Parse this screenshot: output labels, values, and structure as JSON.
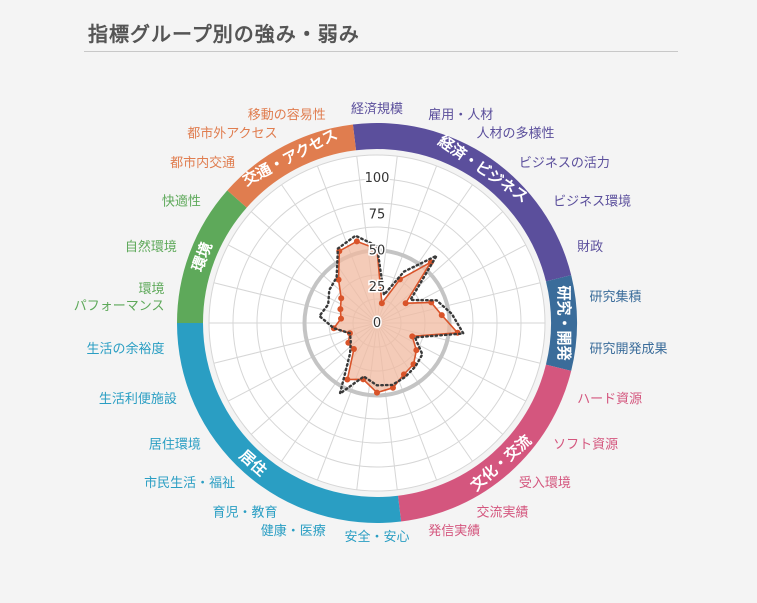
{
  "title": "指標グループ別の強み・弱み",
  "chart_data": {
    "type": "radar",
    "axis_ticks": [
      "0",
      "25",
      "50",
      "75",
      "100"
    ],
    "rlim": [
      0,
      100
    ],
    "average_value": 50,
    "groups": [
      {
        "name": "経済・ビジネス",
        "color": "#5b4f9c"
      },
      {
        "name": "研究・開発",
        "color": "#3a6c9a"
      },
      {
        "name": "文化・交流",
        "color": "#d4567e"
      },
      {
        "name": "居住",
        "color": "#2a9ec3"
      },
      {
        "name": "環境",
        "color": "#5ea95a"
      },
      {
        "name": "交通・アクセス",
        "color": "#e07d4f"
      }
    ],
    "categories": [
      {
        "label": "経済規模",
        "group": 0
      },
      {
        "label": "雇用・人材",
        "group": 0
      },
      {
        "label": "人材の多様性",
        "group": 0
      },
      {
        "label": "ビジネスの活力",
        "group": 0
      },
      {
        "label": "ビジネス環境",
        "group": 0
      },
      {
        "label": "財政",
        "group": 0
      },
      {
        "label": "研究集積",
        "group": 1
      },
      {
        "label": "研究開発成果",
        "group": 1
      },
      {
        "label": "ハード資源",
        "group": 2
      },
      {
        "label": "ソフト資源",
        "group": 2
      },
      {
        "label": "受入環境",
        "group": 2
      },
      {
        "label": "交流実績",
        "group": 2
      },
      {
        "label": "発信実績",
        "group": 2
      },
      {
        "label": "安全・安心",
        "group": 3
      },
      {
        "label": "健康・医療",
        "group": 3
      },
      {
        "label": "育児・教育",
        "group": 3
      },
      {
        "label": "市民生活・福祉",
        "group": 3
      },
      {
        "label": "居住環境",
        "group": 3
      },
      {
        "label": "生活利便施設",
        "group": 3
      },
      {
        "label": "生活の余裕度",
        "group": 3
      },
      {
        "label": "環境\nパフォーマンス",
        "group": 4
      },
      {
        "label": "自然環境",
        "group": 4
      },
      {
        "label": "快適性",
        "group": 4
      },
      {
        "label": "都市内交通",
        "group": 5
      },
      {
        "label": "都市外アクセス",
        "group": 5
      },
      {
        "label": "移動の容易性",
        "group": 5
      }
    ],
    "series": [
      {
        "style": "dotted",
        "color": "#3a3a3a",
        "values": [
          53,
          20,
          40,
          62,
          28,
          44,
          52,
          60,
          28,
          38,
          40,
          42,
          44,
          43,
          38,
          55,
          28,
          22,
          20,
          30,
          40,
          36,
          40,
          42,
          58,
          62
        ]
      },
      {
        "style": "solid-filled",
        "color": "#d9542a",
        "fill": "#f0b9a0",
        "values": [
          51,
          14,
          34,
          56,
          24,
          40,
          45,
          56,
          26,
          33,
          38,
          40,
          46,
          48,
          40,
          44,
          24,
          24,
          20,
          30,
          25,
          27,
          30,
          40,
          56,
          58
        ]
      }
    ]
  }
}
